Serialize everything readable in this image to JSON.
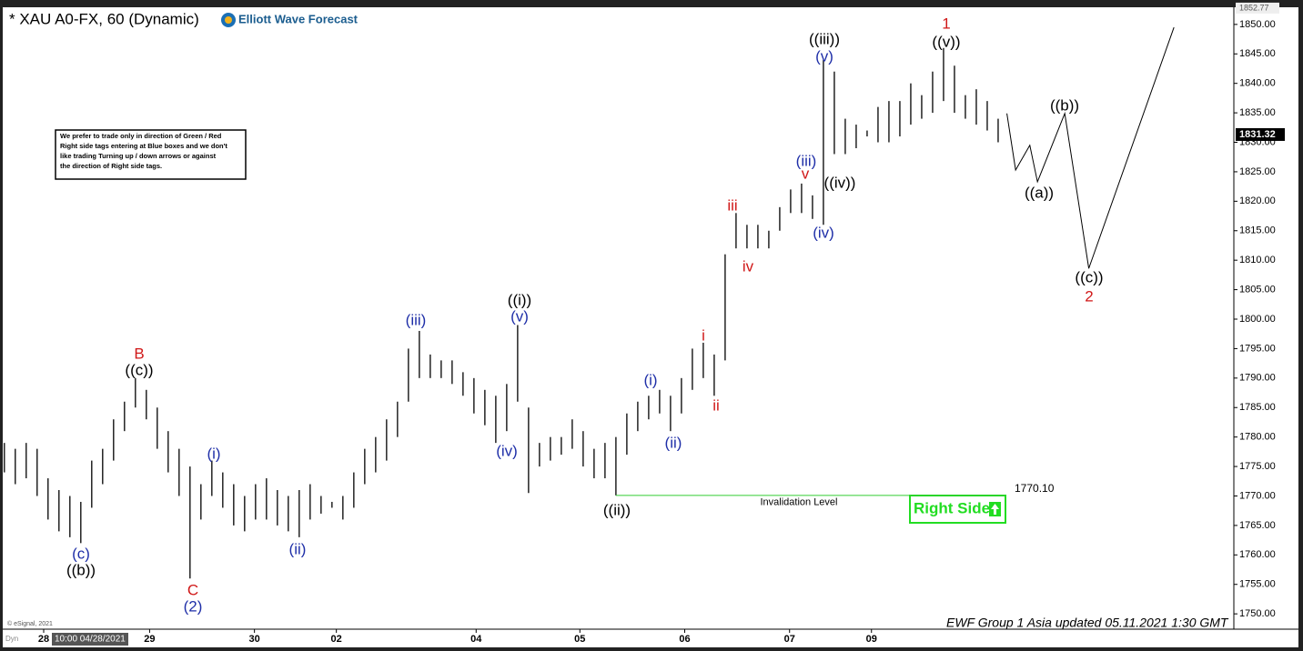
{
  "chart_data": {
    "type": "hilo",
    "title": "* XAU A0-FX, 60 (Dynamic)",
    "logo": "Elliott Wave Forecast",
    "note": [
      "We prefer to trade only in direction of Green / Red",
      "Right side tags entering at Blue boxes and we don't",
      "like trading Turning up / down arrows or against",
      "the direction of Right side tags."
    ],
    "footer": "EWF Group 1 Asia updated 05.11.2021 1:30 GMT",
    "copyright": "© eSignal, 2021",
    "cursor_label": "10:00 04/28/2021",
    "mode_label": "Dyn",
    "top_price": {
      "value": 1852.77,
      "label": "1852.77"
    },
    "last_price": {
      "value": 1831.32,
      "label": "1831.32"
    },
    "invalidation": {
      "value": 1770.1,
      "label": "1770.10",
      "text": "Invalidation Level",
      "color": "#33cc33"
    },
    "right_side": {
      "text": "Right Side",
      "color": "#22dd22"
    },
    "xlim": [
      -0.4,
      112.5
    ],
    "ylim": [
      1747.4,
      1852.6
    ],
    "xticks": [
      {
        "value": 3.6,
        "label": "28"
      },
      {
        "value": 13.3,
        "label": "29"
      },
      {
        "value": 22.9,
        "label": "30"
      },
      {
        "value": 30.4,
        "label": "02"
      },
      {
        "value": 43.2,
        "label": "04"
      },
      {
        "value": 52.7,
        "label": "05"
      },
      {
        "value": 62.3,
        "label": "06"
      },
      {
        "value": 71.9,
        "label": "07"
      },
      {
        "value": 79.4,
        "label": "09"
      }
    ],
    "yticks": [
      {
        "value": 1750,
        "label": "1750.00"
      },
      {
        "value": 1755,
        "label": "1755.00"
      },
      {
        "value": 1760,
        "label": "1760.00"
      },
      {
        "value": 1765,
        "label": "1765.00"
      },
      {
        "value": 1770,
        "label": "1770.00"
      },
      {
        "value": 1775,
        "label": "1775.00"
      },
      {
        "value": 1780,
        "label": "1780.00"
      },
      {
        "value": 1785,
        "label": "1785.00"
      },
      {
        "value": 1790,
        "label": "1790.00"
      },
      {
        "value": 1795,
        "label": "1795.00"
      },
      {
        "value": 1800,
        "label": "1800.00"
      },
      {
        "value": 1805,
        "label": "1805.00"
      },
      {
        "value": 1810,
        "label": "1810.00"
      },
      {
        "value": 1815,
        "label": "1815.00"
      },
      {
        "value": 1820,
        "label": "1820.00"
      },
      {
        "value": 1825,
        "label": "1825.00"
      },
      {
        "value": 1830,
        "label": "1830.00"
      },
      {
        "value": 1835,
        "label": "1835.00"
      },
      {
        "value": 1840,
        "label": "1840.00"
      },
      {
        "value": 1845,
        "label": "1845.00"
      },
      {
        "value": 1850,
        "label": "1850.00"
      }
    ],
    "bars": {
      "color": "#000000",
      "x": [
        0,
        1,
        2,
        3,
        4,
        5,
        6,
        7,
        8,
        9,
        10,
        11,
        12,
        13,
        14,
        15,
        16,
        17,
        18,
        19,
        20,
        21,
        22,
        23,
        24,
        25,
        26,
        27,
        28,
        29,
        30,
        31,
        32,
        33,
        34,
        35,
        36,
        37,
        38,
        39,
        40,
        41,
        42,
        43,
        44,
        45,
        46,
        47,
        48,
        49,
        50,
        51,
        52,
        53,
        54,
        55,
        56,
        57,
        58,
        59,
        60,
        61,
        62,
        63,
        64,
        65,
        66,
        67,
        68,
        69,
        70,
        71,
        72,
        73,
        74,
        75,
        76,
        77,
        78,
        79,
        80,
        81,
        82,
        83,
        84,
        85,
        86,
        87,
        88,
        89,
        90,
        91
      ],
      "high": [
        1779,
        1778,
        1779,
        1778,
        1773,
        1771,
        1770,
        1769,
        1776,
        1778,
        1783,
        1786,
        1790,
        1788,
        1785,
        1781,
        1778,
        1775,
        1772,
        1776,
        1774,
        1772,
        1770,
        1772,
        1773,
        1771,
        1770,
        1771,
        1772,
        1770,
        1769,
        1770,
        1774,
        1778,
        1780,
        1783,
        1786,
        1795,
        1798,
        1794,
        1793,
        1793,
        1791,
        1790,
        1788,
        1787,
        1789,
        1799,
        1785,
        1779,
        1780,
        1780,
        1783,
        1781,
        1778,
        1779,
        1780,
        1784,
        1786,
        1787,
        1788,
        1787,
        1790,
        1795,
        1796,
        1794,
        1811,
        1818,
        1816,
        1816,
        1815,
        1819,
        1822,
        1823,
        1821,
        1844,
        1842,
        1834,
        1833,
        1832,
        1836,
        1837,
        1837,
        1840,
        1838,
        1842,
        1846,
        1843,
        1838,
        1839,
        1837,
        1834
      ],
      "low": [
        1774,
        1772,
        1773,
        1770,
        1766,
        1764,
        1763,
        1762,
        1768,
        1772,
        1776,
        1781,
        1785,
        1783,
        1778,
        1774,
        1770,
        1756,
        1766,
        1770,
        1768,
        1765,
        1764,
        1766,
        1766,
        1765,
        1764,
        1763,
        1766,
        1767,
        1768,
        1766,
        1768,
        1772,
        1774,
        1776,
        1780,
        1786,
        1790,
        1790,
        1790,
        1789,
        1787,
        1784,
        1782,
        1779,
        1781,
        1786,
        1770.5,
        1775,
        1776,
        1777,
        1778,
        1775,
        1773,
        1773,
        1770.1,
        1777,
        1781,
        1783,
        1784,
        1781,
        1784,
        1788,
        1790,
        1787,
        1793,
        1812,
        1812,
        1812,
        1812,
        1815,
        1818,
        1818,
        1817,
        1816,
        1828,
        1828,
        1829,
        1831,
        1830,
        1830,
        1831,
        1833,
        1834,
        1835,
        1837,
        1835,
        1834,
        1833,
        1832,
        1830
      ]
    },
    "projection": {
      "color": "#000000",
      "x": [
        91.8,
        92.6,
        93.9,
        94.6,
        97.1,
        99.3,
        107.1
      ],
      "values": [
        1834.9,
        1825.3,
        1829.5,
        1823.3,
        1834.9,
        1808.6,
        1849.5
      ]
    },
    "colors": {
      "black": "#000000",
      "blue": "#1f2fa8",
      "red": "#d01818"
    },
    "annotations": [
      {
        "text": "B",
        "color": "red"
      },
      {
        "text": "((c))",
        "color": "black"
      },
      {
        "text": "(c)",
        "color": "blue"
      },
      {
        "text": "((b))",
        "color": "black"
      },
      {
        "text": "C",
        "color": "red"
      },
      {
        "text": "(2)",
        "color": "blue"
      },
      {
        "text": "(i)",
        "color": "blue"
      },
      {
        "text": "(ii)",
        "color": "blue"
      },
      {
        "text": "(iii)",
        "color": "blue"
      },
      {
        "text": "((i))",
        "color": "black"
      },
      {
        "text": "(v)",
        "color": "blue"
      },
      {
        "text": "(iv)",
        "color": "blue"
      },
      {
        "text": "((ii))",
        "color": "black"
      },
      {
        "text": "(i)",
        "color": "blue"
      },
      {
        "text": "(ii)",
        "color": "blue"
      },
      {
        "text": "i",
        "color": "red"
      },
      {
        "text": "ii",
        "color": "red"
      },
      {
        "text": "iii",
        "color": "red"
      },
      {
        "text": "iv",
        "color": "red"
      },
      {
        "text": "(iii)",
        "color": "blue"
      },
      {
        "text": "v",
        "color": "red"
      },
      {
        "text": "((iii))",
        "color": "black"
      },
      {
        "text": "(v)",
        "color": "blue"
      },
      {
        "text": "((iv))",
        "color": "black"
      },
      {
        "text": "(iv)",
        "color": "blue"
      },
      {
        "text": "1",
        "color": "red"
      },
      {
        "text": "((v))",
        "color": "black"
      },
      {
        "text": "((b))",
        "color": "black"
      },
      {
        "text": "((a))",
        "color": "black"
      },
      {
        "text": "((c))",
        "color": "black"
      },
      {
        "text": "2",
        "color": "red"
      }
    ]
  }
}
